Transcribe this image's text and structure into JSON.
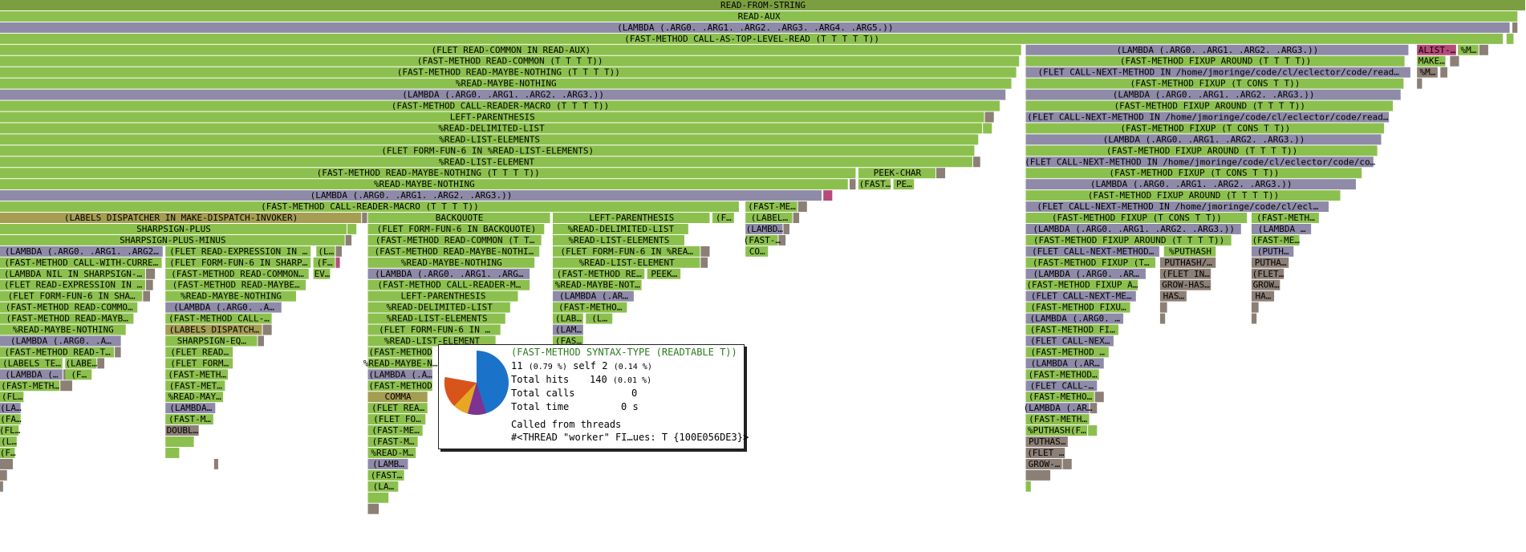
{
  "frames": [
    "READ-FROM-STRING",
    "READ-AUX",
    "(LAMBDA (.ARG0. .ARG1. .ARG2. .ARG3. .ARG4. .ARG5.))",
    "(FAST-METHOD CALL-AS-TOP-LEVEL-READ (T T T T T))",
    "(FLET READ-COMMON IN READ-AUX)",
    "(LAMBDA (.ARG0. .ARG1. .ARG2. .ARG3.))",
    "ALIST-…",
    "%M…",
    "(FAST-METHOD READ-COMMON (T T T T))",
    "(FAST-METHOD FIXUP AROUND (T T T T))",
    "MAKE…",
    "(FAST-METHOD READ-MAYBE-NOTHING (T T T T))",
    "(FLET CALL-NEXT-METHOD IN /home/jmoringe/code/cl/eclector/code/read…",
    "%M…",
    "%READ-MAYBE-NOTHING",
    "(FAST-METHOD FIXUP (T CONS T T))",
    "(LAMBDA (.ARG0. .ARG1. .ARG2. .ARG3.))",
    "(LAMBDA (.ARG0. .ARG1. .ARG2. .ARG3.))",
    "(FAST-METHOD CALL-READER-MACRO (T T T T))",
    "(FAST-METHOD FIXUP AROUND (T T T T))",
    "LEFT-PARENTHESIS",
    "(FLET CALL-NEXT-METHOD IN /home/jmoringe/code/cl/eclector/code/read…",
    "%READ-DELIMITED-LIST",
    "(FAST-METHOD FIXUP (T CONS T T))",
    "%READ-LIST-ELEMENTS",
    "(LAMBDA (.ARG0. .ARG1. .ARG2. .ARG3.))",
    "(FLET FORM-FUN-6 IN %READ-LIST-ELEMENTS)",
    "(FAST-METHOD FIXUP AROUND (T T T T))",
    "%READ-LIST-ELEMENT",
    "(FLET CALL-NEXT-METHOD IN /home/jmoringe/code/cl/eclector/code/co…",
    "(FAST-METHOD READ-MAYBE-NOTHING (T T T T))",
    "PEEK-CHAR",
    "(FAST-METHOD FIXUP (T CONS T T))",
    "%READ-MAYBE-NOTHING",
    "(FAST…",
    "PE…",
    "(LAMBDA (.ARG0. .ARG1. .ARG2. .ARG3.))",
    "(LAMBDA (.ARG0. .ARG1. .ARG2. .ARG3.))",
    "(FAST-METHOD FIXUP AROUND (T T T T))",
    "(FAST-METHOD CALL-READER-MACRO (T T T T))",
    "(FAST-ME…",
    "(FLET CALL-NEXT-METHOD IN /home/jmoringe/code/cl/ecl…",
    "(LABELS DISPATCHER IN MAKE-DISPATCH-INVOKER)",
    "BACKQUOTE",
    "LEFT-PARENTHESIS",
    "(F…",
    "(LABEL…",
    "(FAST-METHOD FIXUP (T CONS T T))",
    "(FAST-METH…",
    "SHARPSIGN-PLUS",
    "(FLET FORM-FUN-6 IN BACKQUOTE)",
    "%READ-DELIMITED-LIST",
    "(LAMBD…",
    "(LAMBDA (.ARG0. .ARG1. .ARG2. .ARG3.))",
    "(LAMBDA …",
    "SHARPSIGN-PLUS-MINUS",
    "(FAST-METHOD READ-COMMON (T T…",
    "%READ-LIST-ELEMENTS",
    "(FAST-…",
    "(FAST-METHOD FIXUP AROUND (T T T T))",
    "(FAST-ME…",
    "(LAMBDA (.ARG0. .ARG1. .ARG2…",
    "(FLET READ-EXPRESSION IN …",
    "(L…",
    "(FAST-METHOD READ-MAYBE-NOTHI…",
    "(FLET FORM-FUN-6 IN %REA…",
    "CO…",
    "(FLET CALL-NEXT-METHOD…",
    "%PUTHASH",
    "(PUTH…",
    "(FAST-METHOD CALL-WITH-CURRE…",
    "(FLET FORM-FUN-6 IN SHARP…",
    "(F…",
    "%READ-MAYBE-NOTHING",
    "%READ-LIST-ELEMENT",
    "(FAST-METHOD FIXUP (T…",
    "PUTHASH/…",
    "PUTHA…",
    "(LAMBDA NIL IN SHARPSIGN-…",
    "(FAST-METHOD READ-COMMON…",
    "EV…",
    "(LAMBDA (.ARG0. .ARG1. .ARG…",
    "(FAST-METHOD RE…",
    "PEEK…",
    "(LAMBDA (.ARG0. .AR…",
    "(FLET IN…",
    "(FLET…",
    "(FLET READ-EXPRESSION IN …",
    "(FAST-METHOD READ-MAYBE…",
    "(FAST-METHOD CALL-READER-M…",
    "%READ-MAYBE-NOT…",
    "(FAST-METHOD FIXUP A…",
    "GROW-HAS…",
    "GROW…",
    "(FLET FORM-FUN-6 IN SHA…",
    "%READ-MAYBE-NOTHING",
    "LEFT-PARENTHESIS",
    "(LAMBDA (.AR…",
    "(FLET CALL-NEXT-ME…",
    "HAS…",
    "HA…",
    "(FAST-METHOD READ-COMMO…",
    "(LAMBDA (.ARG0. .A…",
    "%READ-DELIMITED-LIST",
    "(FAST-METHO…",
    "(FAST-METHOD FIXU…",
    "(FAST-METHOD READ-MAYB…",
    "(FAST-METHOD CALL-…",
    "%READ-LIST-ELEMENTS",
    "(LAB…",
    "(L…",
    "(LAMBDA (.ARG0. …",
    "%READ-MAYBE-NOTHING",
    "(LABELS DISPATCH…",
    "(FLET FORM-FUN-6 IN …",
    "(LAM…",
    "(FAST-METHOD FI…",
    "(LAMBDA (.ARG0. .A…",
    "SHARPSIGN-EQ…",
    "%READ-LIST-ELEMENT",
    "(FAS…",
    "(FLET CALL-NEX…",
    "(FAST-METHOD READ-T…",
    "(FLET READ…",
    "(FAST-METHOD",
    "(FAST-METHOD …",
    "(LABELS TE…",
    "(LABE…",
    "(FLET FORM…",
    "%READ-MAYBE-N…",
    "(LAMBDA (.AR…",
    "(LAMBDA (…",
    "(F…",
    "(FAST-METH…",
    "(LAMBDA (.A…",
    "(FAST-METHOD…",
    "(FAST-METH…",
    "(FAST-MET…",
    "(FAST-METHOD",
    "(FLET CALL-…",
    "(FL…",
    "%READ-MAY…",
    "COMMA",
    "(FAST-METHO…",
    "(LA…",
    "(LAMBDA…",
    "(FLET REA…",
    "(LAMBDA (.AR…",
    "(FA…",
    "(FAST-M…",
    "(FLET FO…",
    "(FAST-METH…",
    "(FL…",
    "DOUBL…",
    "(FAST-ME…",
    "%PUTHASH(F…",
    "(L…",
    "(FAST-M…",
    "PUTHAS…",
    "(F…",
    "%READ-M…",
    "(FLET …",
    "(LAMB…",
    "GROW-…",
    "(FAST…",
    "(LA…"
  ],
  "tooltip": {
    "title": "(FAST-METHOD SYNTAX-TYPE (READTABLE T))",
    "lines": [
      [
        "11",
        "(0.79 %)",
        "self 2",
        "(0.14 %)"
      ],
      [
        "Total hits",
        "140",
        "(0.01 %)"
      ],
      [
        "Total calls",
        "0"
      ],
      [
        "Total time",
        "0 s"
      ]
    ],
    "threads_heading": "Called from threads",
    "thread": "#<THREAD \"worker\" FI…ues: T {100E056DE3}>"
  }
}
